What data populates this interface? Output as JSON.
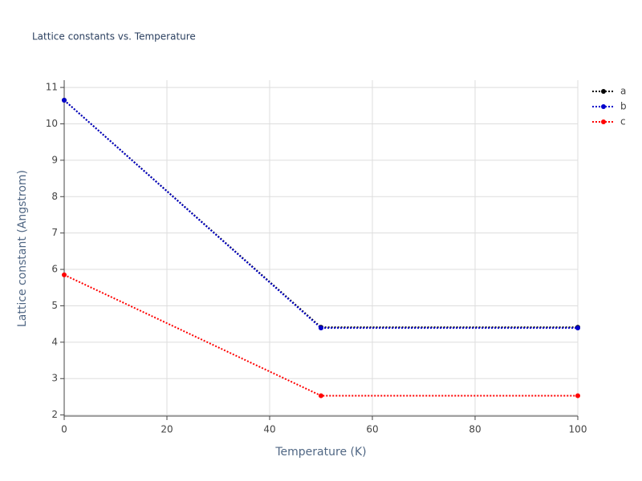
{
  "chart_data": {
    "type": "line",
    "title": "Lattice constants vs. Temperature",
    "x_label": "Temperature (K)",
    "y_label": "Lattice constant (Angstrom)",
    "x": [
      0,
      50,
      100
    ],
    "series": [
      {
        "name": "a",
        "color": "#000000",
        "values": [
          10.65,
          4.41,
          4.41
        ]
      },
      {
        "name": "b",
        "color": "#0000cc",
        "values": [
          10.65,
          4.39,
          4.39
        ]
      },
      {
        "name": "c",
        "color": "#ff0000",
        "values": [
          5.85,
          2.53,
          2.53
        ]
      }
    ],
    "xlim": [
      0,
      100
    ],
    "xticks": [
      0,
      20,
      40,
      60,
      80,
      100
    ],
    "ylim": [
      1.97,
      11.2
    ],
    "yticks": [
      2,
      3,
      4,
      5,
      6,
      7,
      8,
      9,
      10,
      11
    ],
    "grid": true,
    "legend": "right"
  }
}
